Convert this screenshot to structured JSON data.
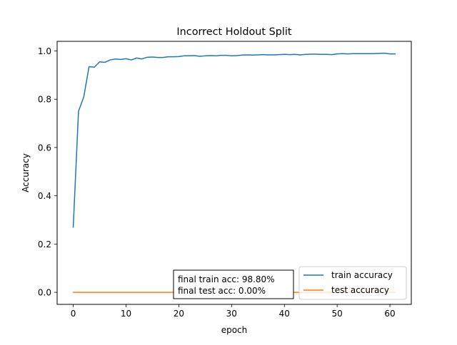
{
  "chart_data": {
    "type": "line",
    "title": "Incorrect Holdout Split",
    "xlabel": "epoch",
    "ylabel": "Accuracy",
    "xlim": [
      -3.05,
      64.05
    ],
    "ylim": [
      -0.05,
      1.04
    ],
    "xticks": [
      0,
      10,
      20,
      30,
      40,
      50,
      60
    ],
    "yticks": [
      0.0,
      0.2,
      0.4,
      0.6,
      0.8,
      1.0
    ],
    "ytick_labels": [
      "0.0",
      "0.2",
      "0.4",
      "0.6",
      "0.8",
      "1.0"
    ],
    "grid": false,
    "legend_position": "lower-right",
    "series": [
      {
        "name": "train accuracy",
        "color": "#1f77b4",
        "x": [
          0,
          1,
          2,
          3,
          4,
          5,
          6,
          7,
          8,
          9,
          10,
          11,
          12,
          13,
          14,
          15,
          16,
          17,
          18,
          19,
          20,
          21,
          22,
          23,
          24,
          25,
          26,
          27,
          28,
          29,
          30,
          31,
          32,
          33,
          34,
          35,
          36,
          37,
          38,
          39,
          40,
          41,
          42,
          43,
          44,
          45,
          46,
          47,
          48,
          49,
          50,
          51,
          52,
          53,
          54,
          55,
          56,
          57,
          58,
          59,
          60,
          61
        ],
        "y": [
          0.27,
          0.75,
          0.81,
          0.935,
          0.933,
          0.955,
          0.953,
          0.963,
          0.967,
          0.965,
          0.968,
          0.963,
          0.971,
          0.967,
          0.974,
          0.975,
          0.973,
          0.973,
          0.976,
          0.976,
          0.977,
          0.98,
          0.98,
          0.981,
          0.978,
          0.98,
          0.981,
          0.98,
          0.982,
          0.982,
          0.98,
          0.981,
          0.983,
          0.984,
          0.983,
          0.984,
          0.985,
          0.984,
          0.984,
          0.985,
          0.986,
          0.985,
          0.986,
          0.984,
          0.986,
          0.987,
          0.987,
          0.986,
          0.986,
          0.985,
          0.988,
          0.989,
          0.988,
          0.989,
          0.989,
          0.989,
          0.989,
          0.989,
          0.99,
          0.991,
          0.988,
          0.988
        ]
      },
      {
        "name": "test accuracy",
        "color": "#ff7f0e",
        "x": [
          0,
          1,
          2,
          3,
          4,
          5,
          6,
          7,
          8,
          9,
          10,
          11,
          12,
          13,
          14,
          15,
          16,
          17,
          18,
          19,
          20,
          21,
          22,
          23,
          24,
          25,
          26,
          27,
          28,
          29,
          30,
          31,
          32,
          33,
          34,
          35,
          36,
          37,
          38,
          39,
          40,
          41,
          42,
          43,
          44,
          45,
          46,
          47,
          48,
          49,
          50,
          51,
          52,
          53,
          54,
          55,
          56,
          57,
          58,
          59,
          60,
          61
        ],
        "y": [
          0,
          0,
          0,
          0,
          0,
          0,
          0,
          0,
          0,
          0,
          0,
          0,
          0,
          0,
          0,
          0,
          0,
          0,
          0,
          0,
          0,
          0,
          0,
          0,
          0,
          0,
          0,
          0,
          0,
          0,
          0,
          0,
          0,
          0,
          0,
          0,
          0,
          0,
          0,
          0,
          0,
          0,
          0,
          0,
          0,
          0,
          0,
          0,
          0,
          0,
          0,
          0,
          0,
          0,
          0,
          0,
          0,
          0,
          0,
          0,
          0,
          0
        ]
      }
    ],
    "annotation": {
      "line1": "final train acc: 98.80%",
      "line2": "final test acc: 0.00%"
    }
  }
}
